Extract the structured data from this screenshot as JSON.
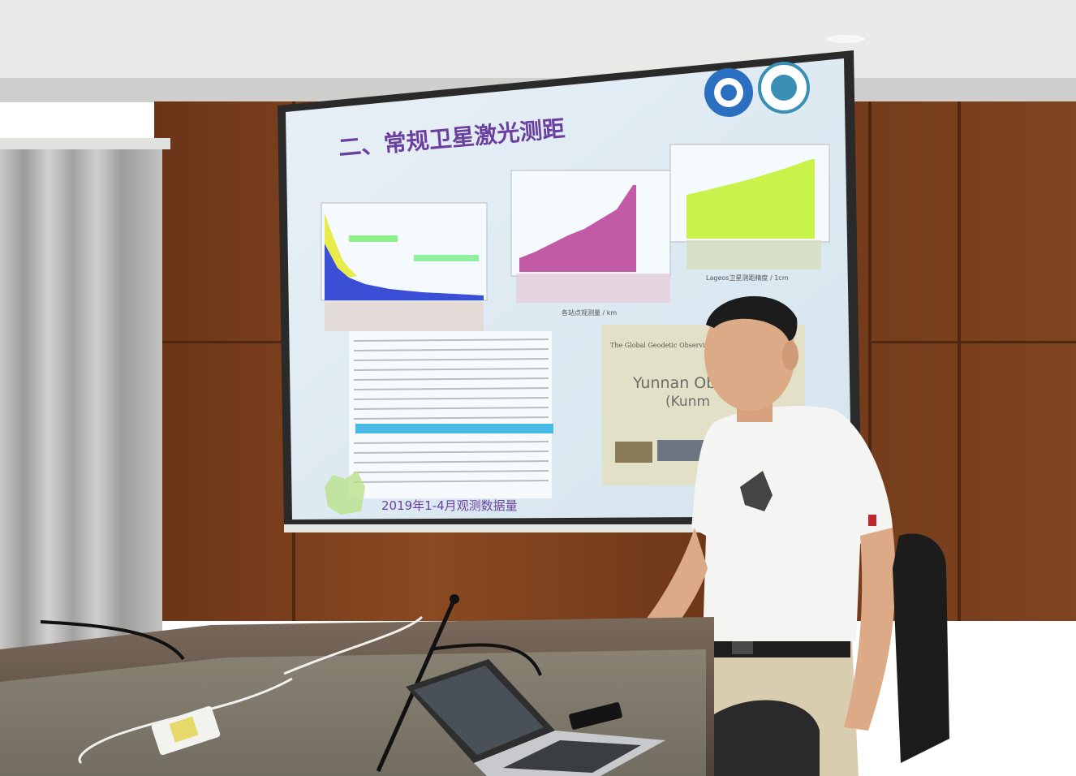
{
  "slide": {
    "title": "二、常规卫星激光测距",
    "caption": "2019年1-4月观测数据量",
    "chart2_xlabel": "各站点观测量 / km",
    "chart3_xlabel": "Lageos卫星测距精度 / 1cm",
    "inset_heading": "The Global Geodetic Observing System",
    "inset_title": "Yunnan Ob",
    "inset_subtitle": "(Kunm"
  },
  "colors": {
    "wall_wood": "#7a3f1c",
    "screen": "#dfeaf3",
    "slide_title": "#6a3fa0",
    "chart_blue": "#3a4fd6",
    "chart_magenta": "#c25aa6",
    "chart_yellow_green": "#c9f24a",
    "shirt": "#f4f4f2",
    "trousers": "#d9cdb0"
  }
}
